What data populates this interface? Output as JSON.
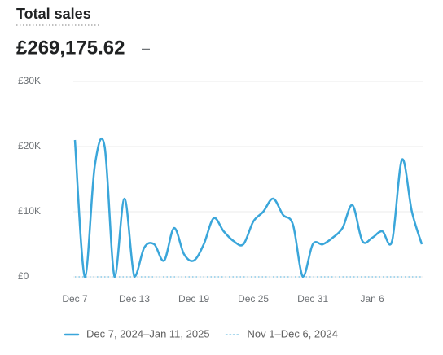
{
  "chart_data": {
    "type": "line",
    "title": "Total sales",
    "total": "£269,175.62",
    "comparison": "–",
    "categories": [
      "Dec 7",
      null,
      null,
      null,
      null,
      null,
      "Dec 13",
      null,
      null,
      null,
      null,
      null,
      "Dec 19",
      null,
      null,
      null,
      null,
      null,
      "Dec 25",
      null,
      null,
      null,
      null,
      null,
      "Dec 31",
      null,
      null,
      null,
      null,
      null,
      "Jan 6",
      null,
      null,
      null,
      null,
      null
    ],
    "series": [
      {
        "name": "Dec 7, 2024–Jan 11, 2025",
        "color": "#3aa6da",
        "style": "solid",
        "values": [
          21000,
          0,
          17000,
          20000,
          0,
          12000,
          0,
          4500,
          5000,
          2500,
          7500,
          3500,
          2500,
          5000,
          9000,
          7000,
          5500,
          5000,
          8500,
          10000,
          12000,
          9500,
          8000,
          0,
          5000,
          5000,
          6000,
          7500,
          11000,
          5500,
          6000,
          7000,
          5500,
          18000,
          10000,
          5000
        ]
      },
      {
        "name": "Nov 1–Dec 6, 2024",
        "color": "#8ccbe8",
        "style": "dotted",
        "values": [
          0,
          0,
          0,
          0,
          0,
          0,
          0,
          0,
          0,
          0,
          0,
          0,
          0,
          0,
          0,
          0,
          0,
          0,
          0,
          0,
          0,
          0,
          0,
          0,
          0,
          0,
          0,
          0,
          0,
          0,
          0,
          0,
          0,
          0,
          0,
          0
        ]
      }
    ],
    "ylim": [
      0,
      30000
    ],
    "yticks": [
      {
        "value": 0,
        "label": "£0"
      },
      {
        "value": 10000,
        "label": "£10K"
      },
      {
        "value": 20000,
        "label": "£20K"
      },
      {
        "value": 30000,
        "label": "£30K"
      }
    ],
    "grid": true
  }
}
